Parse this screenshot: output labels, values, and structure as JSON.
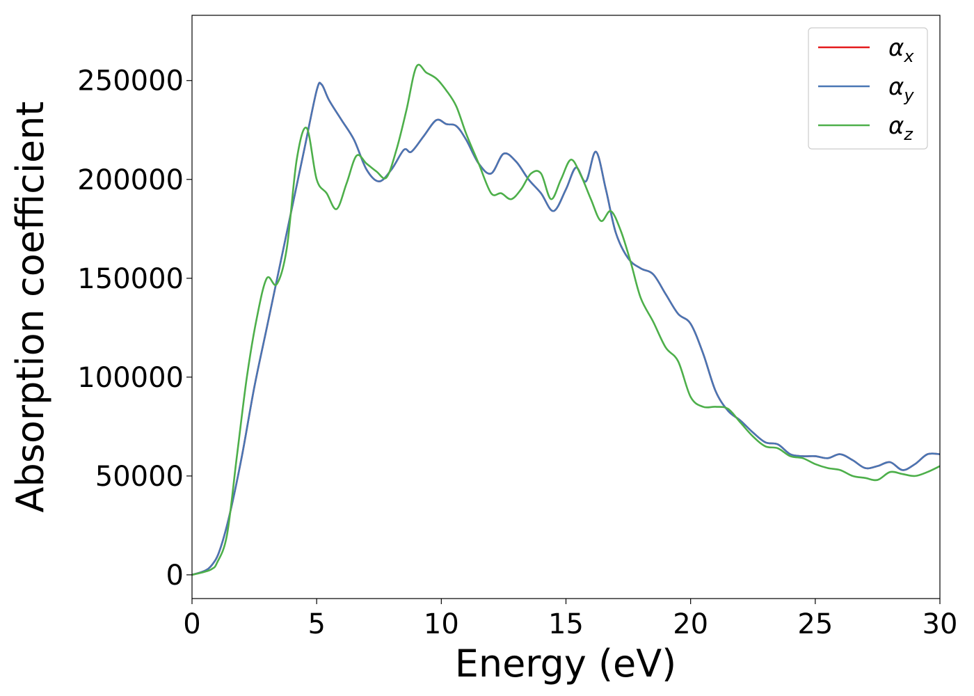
{
  "chart_data": {
    "type": "line",
    "xlabel": "Energy (eV)",
    "ylabel": "Absorption coefficient",
    "xlim": [
      0,
      30
    ],
    "ylim": [
      -12000,
      283000
    ],
    "xticks": [
      "0",
      "5",
      "10",
      "15",
      "20",
      "25",
      "30"
    ],
    "xtick_values": [
      0,
      5,
      10,
      15,
      20,
      25,
      30
    ],
    "yticks": [
      "0",
      "50000",
      "100000",
      "150000",
      "200000",
      "250000"
    ],
    "ytick_values": [
      0,
      50000,
      100000,
      150000,
      200000,
      250000
    ],
    "grid": false,
    "legend_position": "top-right",
    "series": [
      {
        "name": "α",
        "subscript": "x",
        "color": "#e41a1c",
        "x": [
          0,
          0.5,
          0.8,
          1.1,
          1.5,
          2.0,
          2.5,
          3.0,
          3.5,
          4.0,
          4.5,
          5.0,
          5.2,
          5.5,
          6.0,
          6.5,
          7.0,
          7.5,
          8.0,
          8.5,
          8.8,
          9.3,
          9.8,
          10.2,
          10.6,
          11.0,
          11.5,
          12.0,
          12.5,
          13.0,
          13.5,
          14.0,
          14.5,
          15.0,
          15.4,
          15.8,
          16.2,
          16.6,
          17.0,
          17.5,
          18.0,
          18.5,
          19.0,
          19.5,
          20.0,
          20.5,
          21.0,
          21.5,
          22.0,
          22.5,
          23.0,
          23.5,
          24.0,
          24.5,
          25.0,
          25.5,
          26.0,
          26.5,
          27.0,
          27.5,
          28.0,
          28.5,
          29.0,
          29.5,
          30.0
        ],
        "y": [
          0,
          2000,
          5000,
          12000,
          30000,
          60000,
          95000,
          125000,
          155000,
          185000,
          215000,
          245000,
          248000,
          240000,
          230000,
          220000,
          205000,
          199000,
          205000,
          215000,
          214000,
          222000,
          230000,
          228000,
          227000,
          220000,
          208000,
          203000,
          213000,
          209000,
          200000,
          193000,
          184000,
          195000,
          206000,
          199000,
          214000,
          195000,
          173000,
          160000,
          155000,
          152000,
          142000,
          132000,
          127000,
          112000,
          93000,
          83000,
          78000,
          72000,
          67000,
          66000,
          61000,
          60000,
          60000,
          59000,
          61000,
          58000,
          54000,
          55000,
          57000,
          53000,
          56000,
          61000,
          61000
        ]
      },
      {
        "name": "α",
        "subscript": "y",
        "color": "#4876b4",
        "x": [
          0,
          0.5,
          0.8,
          1.1,
          1.5,
          2.0,
          2.5,
          3.0,
          3.5,
          4.0,
          4.5,
          5.0,
          5.2,
          5.5,
          6.0,
          6.5,
          7.0,
          7.5,
          8.0,
          8.5,
          8.8,
          9.3,
          9.8,
          10.2,
          10.6,
          11.0,
          11.5,
          12.0,
          12.5,
          13.0,
          13.5,
          14.0,
          14.5,
          15.0,
          15.4,
          15.8,
          16.2,
          16.6,
          17.0,
          17.5,
          18.0,
          18.5,
          19.0,
          19.5,
          20.0,
          20.5,
          21.0,
          21.5,
          22.0,
          22.5,
          23.0,
          23.5,
          24.0,
          24.5,
          25.0,
          25.5,
          26.0,
          26.5,
          27.0,
          27.5,
          28.0,
          28.5,
          29.0,
          29.5,
          30.0
        ],
        "y": [
          0,
          2000,
          5000,
          12000,
          30000,
          60000,
          95000,
          125000,
          155000,
          185000,
          215000,
          245000,
          248000,
          240000,
          230000,
          220000,
          205000,
          199000,
          205000,
          215000,
          214000,
          222000,
          230000,
          228000,
          227000,
          220000,
          208000,
          203000,
          213000,
          209000,
          200000,
          193000,
          184000,
          195000,
          206000,
          199000,
          214000,
          195000,
          173000,
          160000,
          155000,
          152000,
          142000,
          132000,
          127000,
          112000,
          93000,
          83000,
          78000,
          72000,
          67000,
          66000,
          61000,
          60000,
          60000,
          59000,
          61000,
          58000,
          54000,
          55000,
          57000,
          53000,
          56000,
          61000,
          61000
        ]
      },
      {
        "name": "α",
        "subscript": "z",
        "color": "#4daf4a",
        "x": [
          0,
          0.5,
          0.8,
          1.0,
          1.4,
          1.8,
          2.2,
          2.6,
          3.0,
          3.4,
          3.8,
          4.2,
          4.6,
          5.0,
          5.4,
          5.8,
          6.2,
          6.6,
          7.0,
          7.4,
          7.8,
          8.2,
          8.6,
          9.0,
          9.4,
          9.8,
          10.2,
          10.6,
          11.0,
          11.5,
          12.0,
          12.4,
          12.8,
          13.2,
          13.6,
          14.0,
          14.4,
          14.8,
          15.2,
          15.6,
          16.0,
          16.4,
          16.8,
          17.2,
          17.6,
          18.0,
          18.5,
          19.0,
          19.5,
          20.0,
          20.5,
          21.0,
          21.5,
          22.0,
          22.5,
          23.0,
          23.5,
          24.0,
          24.5,
          25.0,
          25.5,
          26.0,
          26.5,
          27.0,
          27.5,
          28.0,
          28.5,
          29.0,
          29.5,
          30.0
        ],
        "y": [
          0,
          1500,
          3000,
          6000,
          20000,
          60000,
          100000,
          130000,
          150000,
          147000,
          165000,
          210000,
          226000,
          200000,
          193000,
          185000,
          198000,
          212000,
          208000,
          204000,
          201000,
          215000,
          235000,
          257000,
          254000,
          251000,
          245000,
          237000,
          223000,
          208000,
          193000,
          193000,
          190000,
          195000,
          203000,
          203000,
          190000,
          200000,
          210000,
          202000,
          190000,
          179000,
          184000,
          174000,
          158000,
          140000,
          128000,
          115000,
          108000,
          90000,
          85000,
          85000,
          84000,
          77000,
          70000,
          65000,
          64000,
          60000,
          59000,
          56000,
          54000,
          53000,
          50000,
          49000,
          48000,
          52000,
          51000,
          50000,
          52000,
          55000
        ]
      }
    ]
  }
}
